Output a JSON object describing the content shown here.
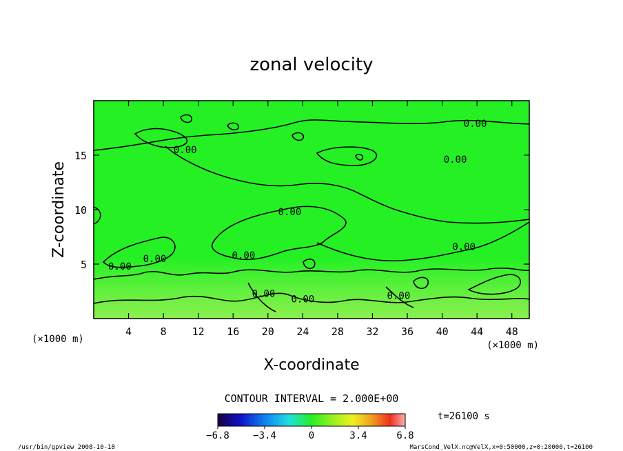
{
  "chart_data": {
    "type": "heatmap",
    "title": "zonal velocity",
    "xlabel": "X-coordinate",
    "ylabel": "Z-coordinate",
    "x_unit_left": "(×1000 m)",
    "x_unit_right": "(×1000 m)",
    "xlim": [
      0,
      50
    ],
    "ylim": [
      0,
      20
    ],
    "x_ticks": [
      4,
      8,
      12,
      16,
      20,
      24,
      28,
      32,
      36,
      40,
      44,
      48
    ],
    "y_ticks": [
      5,
      10,
      15
    ],
    "contour_interval_text": "CONTOUR INTERVAL = 2.000E+00",
    "time_text": "t=26100 s",
    "contour_label": "0.00",
    "contour_label_positions": [
      [
        3,
        4.5
      ],
      [
        7,
        5.2
      ],
      [
        10.5,
        15.2
      ],
      [
        17.2,
        5.5
      ],
      [
        19.5,
        2
      ],
      [
        22.5,
        9.5
      ],
      [
        24,
        1.5
      ],
      [
        35,
        1.8
      ],
      [
        42.5,
        6.3
      ],
      [
        43.8,
        17.6
      ],
      [
        41.5,
        14.3
      ]
    ],
    "colorbar": {
      "min": -6.8,
      "max": 6.8,
      "tick_values": [
        -6.8,
        -3.4,
        0,
        3.4,
        6.8
      ],
      "tick_labels": [
        "−6.8",
        "−3.4",
        "0",
        "3.4",
        "6.8"
      ]
    },
    "footer_left": "/usr/bin/gpview   2008-10-18",
    "footer_right": "MarsCond_VelX.nc@VelX,x=0:50000,z=0:20000,t=26100",
    "colors": {
      "field_base": "#24f024",
      "field_lower": "#7cf048",
      "contour": "#000000"
    }
  }
}
